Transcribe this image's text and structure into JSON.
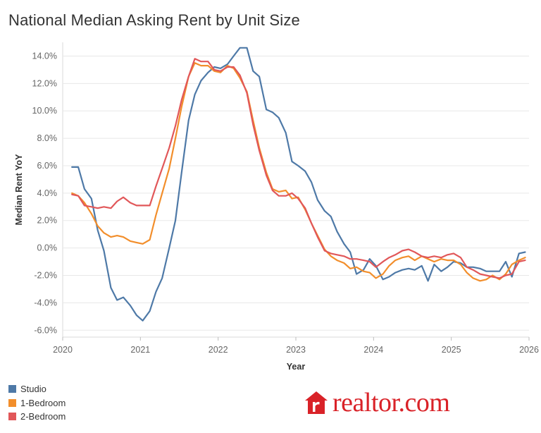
{
  "chart_data": {
    "type": "line",
    "title": "National Median Asking Rent by Unit Size",
    "xlabel": "Year",
    "ylabel": "Median Rent YoY",
    "xlim": [
      2020,
      2026
    ],
    "ylim": [
      -6.5,
      15
    ],
    "xticks": [
      2020,
      2021,
      2022,
      2023,
      2024,
      2025,
      2026
    ],
    "yticks": [
      -6,
      -4,
      -2,
      0,
      2,
      4,
      6,
      8,
      10,
      12,
      14
    ],
    "ytick_labels": [
      "-6.0%",
      "-4.0%",
      "-2.0%",
      "0.0%",
      "2.0%",
      "4.0%",
      "6.0%",
      "8.0%",
      "10.0%",
      "12.0%",
      "14.0%"
    ],
    "grid": "horizontal",
    "legend_position": "bottom-left",
    "series": [
      {
        "name": "Studio",
        "color": "#4e79a7",
        "points": [
          [
            2020.12,
            5.9
          ],
          [
            2020.2,
            5.9
          ],
          [
            2020.28,
            4.3
          ],
          [
            2020.37,
            3.6
          ],
          [
            2020.45,
            1.3
          ],
          [
            2020.53,
            -0.2
          ],
          [
            2020.62,
            -2.9
          ],
          [
            2020.7,
            -3.8
          ],
          [
            2020.78,
            -3.6
          ],
          [
            2020.87,
            -4.2
          ],
          [
            2020.95,
            -4.9
          ],
          [
            2021.03,
            -5.3
          ],
          [
            2021.12,
            -4.6
          ],
          [
            2021.2,
            -3.2
          ],
          [
            2021.28,
            -2.2
          ],
          [
            2021.37,
            0.0
          ],
          [
            2021.45,
            2.0
          ],
          [
            2021.53,
            5.5
          ],
          [
            2021.62,
            9.3
          ],
          [
            2021.7,
            11.2
          ],
          [
            2021.78,
            12.2
          ],
          [
            2021.87,
            12.8
          ],
          [
            2021.95,
            13.2
          ],
          [
            2022.03,
            13.1
          ],
          [
            2022.12,
            13.4
          ],
          [
            2022.2,
            14.0
          ],
          [
            2022.28,
            14.6
          ],
          [
            2022.37,
            14.6
          ],
          [
            2022.45,
            12.9
          ],
          [
            2022.53,
            12.5
          ],
          [
            2022.62,
            10.1
          ],
          [
            2022.7,
            9.9
          ],
          [
            2022.78,
            9.5
          ],
          [
            2022.87,
            8.4
          ],
          [
            2022.95,
            6.3
          ],
          [
            2023.03,
            6.0
          ],
          [
            2023.12,
            5.6
          ],
          [
            2023.2,
            4.8
          ],
          [
            2023.28,
            3.5
          ],
          [
            2023.37,
            2.7
          ],
          [
            2023.45,
            2.3
          ],
          [
            2023.53,
            1.2
          ],
          [
            2023.62,
            0.3
          ],
          [
            2023.7,
            -0.3
          ],
          [
            2023.78,
            -1.9
          ],
          [
            2023.87,
            -1.6
          ],
          [
            2023.95,
            -0.8
          ],
          [
            2024.03,
            -1.3
          ],
          [
            2024.12,
            -2.3
          ],
          [
            2024.2,
            -2.1
          ],
          [
            2024.28,
            -1.8
          ],
          [
            2024.37,
            -1.6
          ],
          [
            2024.45,
            -1.5
          ],
          [
            2024.53,
            -1.6
          ],
          [
            2024.62,
            -1.3
          ],
          [
            2024.7,
            -2.4
          ],
          [
            2024.78,
            -1.2
          ],
          [
            2024.87,
            -1.7
          ],
          [
            2024.95,
            -1.4
          ],
          [
            2025.03,
            -1.0
          ],
          [
            2025.12,
            -1.1
          ],
          [
            2025.2,
            -1.4
          ],
          [
            2025.28,
            -1.4
          ],
          [
            2025.37,
            -1.5
          ],
          [
            2025.45,
            -1.7
          ],
          [
            2025.53,
            -1.7
          ],
          [
            2025.62,
            -1.7
          ],
          [
            2025.7,
            -1.0
          ],
          [
            2025.78,
            -2.1
          ],
          [
            2025.87,
            -0.4
          ],
          [
            2025.95,
            -0.3
          ]
        ]
      },
      {
        "name": "1-Bedroom",
        "color": "#f28e2b",
        "points": [
          [
            2020.12,
            4.0
          ],
          [
            2020.2,
            3.8
          ],
          [
            2020.28,
            3.3
          ],
          [
            2020.37,
            2.5
          ],
          [
            2020.45,
            1.6
          ],
          [
            2020.53,
            1.1
          ],
          [
            2020.62,
            0.8
          ],
          [
            2020.7,
            0.9
          ],
          [
            2020.78,
            0.8
          ],
          [
            2020.87,
            0.5
          ],
          [
            2020.95,
            0.4
          ],
          [
            2021.03,
            0.3
          ],
          [
            2021.12,
            0.6
          ],
          [
            2021.2,
            2.4
          ],
          [
            2021.28,
            4.0
          ],
          [
            2021.37,
            5.8
          ],
          [
            2021.45,
            8.0
          ],
          [
            2021.53,
            10.3
          ],
          [
            2021.62,
            12.5
          ],
          [
            2021.7,
            13.5
          ],
          [
            2021.78,
            13.3
          ],
          [
            2021.87,
            13.3
          ],
          [
            2021.95,
            12.9
          ],
          [
            2022.03,
            12.8
          ],
          [
            2022.12,
            13.3
          ],
          [
            2022.2,
            13.1
          ],
          [
            2022.28,
            12.4
          ],
          [
            2022.37,
            11.4
          ],
          [
            2022.45,
            9.3
          ],
          [
            2022.53,
            7.3
          ],
          [
            2022.62,
            5.5
          ],
          [
            2022.7,
            4.3
          ],
          [
            2022.78,
            4.1
          ],
          [
            2022.87,
            4.2
          ],
          [
            2022.95,
            3.6
          ],
          [
            2023.03,
            3.7
          ],
          [
            2023.12,
            2.8
          ],
          [
            2023.2,
            1.8
          ],
          [
            2023.28,
            0.9
          ],
          [
            2023.37,
            -0.1
          ],
          [
            2023.45,
            -0.6
          ],
          [
            2023.53,
            -0.9
          ],
          [
            2023.62,
            -1.1
          ],
          [
            2023.7,
            -1.5
          ],
          [
            2023.78,
            -1.4
          ],
          [
            2023.87,
            -1.7
          ],
          [
            2023.95,
            -1.8
          ],
          [
            2024.03,
            -2.2
          ],
          [
            2024.12,
            -1.9
          ],
          [
            2024.2,
            -1.3
          ],
          [
            2024.28,
            -0.9
          ],
          [
            2024.37,
            -0.7
          ],
          [
            2024.45,
            -0.6
          ],
          [
            2024.53,
            -0.9
          ],
          [
            2024.62,
            -0.6
          ],
          [
            2024.7,
            -0.8
          ],
          [
            2024.78,
            -1.0
          ],
          [
            2024.87,
            -0.8
          ],
          [
            2024.95,
            -0.9
          ],
          [
            2025.03,
            -0.9
          ],
          [
            2025.12,
            -1.2
          ],
          [
            2025.2,
            -1.8
          ],
          [
            2025.28,
            -2.2
          ],
          [
            2025.37,
            -2.4
          ],
          [
            2025.45,
            -2.3
          ],
          [
            2025.53,
            -2.0
          ],
          [
            2025.62,
            -2.3
          ],
          [
            2025.7,
            -1.9
          ],
          [
            2025.78,
            -1.2
          ],
          [
            2025.87,
            -0.9
          ],
          [
            2025.95,
            -0.7
          ]
        ]
      },
      {
        "name": "2-Bedroom",
        "color": "#e15759",
        "points": [
          [
            2020.12,
            3.9
          ],
          [
            2020.2,
            3.8
          ],
          [
            2020.28,
            3.1
          ],
          [
            2020.37,
            3.0
          ],
          [
            2020.45,
            2.9
          ],
          [
            2020.53,
            3.0
          ],
          [
            2020.62,
            2.9
          ],
          [
            2020.7,
            3.4
          ],
          [
            2020.78,
            3.7
          ],
          [
            2020.87,
            3.3
          ],
          [
            2020.95,
            3.1
          ],
          [
            2021.03,
            3.1
          ],
          [
            2021.12,
            3.1
          ],
          [
            2021.2,
            4.5
          ],
          [
            2021.28,
            5.8
          ],
          [
            2021.37,
            7.3
          ],
          [
            2021.45,
            8.9
          ],
          [
            2021.53,
            10.8
          ],
          [
            2021.62,
            12.5
          ],
          [
            2021.7,
            13.8
          ],
          [
            2021.78,
            13.6
          ],
          [
            2021.87,
            13.6
          ],
          [
            2021.95,
            13.0
          ],
          [
            2022.03,
            12.9
          ],
          [
            2022.12,
            13.2
          ],
          [
            2022.2,
            13.2
          ],
          [
            2022.28,
            12.6
          ],
          [
            2022.37,
            11.3
          ],
          [
            2022.45,
            9.0
          ],
          [
            2022.53,
            7.1
          ],
          [
            2022.62,
            5.3
          ],
          [
            2022.7,
            4.2
          ],
          [
            2022.78,
            3.8
          ],
          [
            2022.87,
            3.8
          ],
          [
            2022.95,
            4.0
          ],
          [
            2023.03,
            3.6
          ],
          [
            2023.12,
            2.9
          ],
          [
            2023.2,
            1.8
          ],
          [
            2023.28,
            0.8
          ],
          [
            2023.37,
            -0.2
          ],
          [
            2023.45,
            -0.4
          ],
          [
            2023.53,
            -0.5
          ],
          [
            2023.62,
            -0.6
          ],
          [
            2023.7,
            -0.8
          ],
          [
            2023.78,
            -0.8
          ],
          [
            2023.87,
            -0.9
          ],
          [
            2023.95,
            -1.0
          ],
          [
            2024.03,
            -1.4
          ],
          [
            2024.12,
            -1.0
          ],
          [
            2024.2,
            -0.7
          ],
          [
            2024.28,
            -0.5
          ],
          [
            2024.37,
            -0.2
          ],
          [
            2024.45,
            -0.1
          ],
          [
            2024.53,
            -0.3
          ],
          [
            2024.62,
            -0.6
          ],
          [
            2024.7,
            -0.7
          ],
          [
            2024.78,
            -0.6
          ],
          [
            2024.87,
            -0.7
          ],
          [
            2024.95,
            -0.5
          ],
          [
            2025.03,
            -0.4
          ],
          [
            2025.12,
            -0.7
          ],
          [
            2025.2,
            -1.4
          ],
          [
            2025.28,
            -1.6
          ],
          [
            2025.37,
            -1.9
          ],
          [
            2025.45,
            -2.0
          ],
          [
            2025.53,
            -2.1
          ],
          [
            2025.62,
            -2.2
          ],
          [
            2025.7,
            -2.0
          ],
          [
            2025.78,
            -1.9
          ],
          [
            2025.87,
            -1.0
          ],
          [
            2025.95,
            -0.9
          ]
        ]
      }
    ]
  },
  "branding": {
    "logo_text": "realtor.com",
    "logo_icon": "realtor-house-r-icon",
    "brand_color": "#d92228"
  }
}
